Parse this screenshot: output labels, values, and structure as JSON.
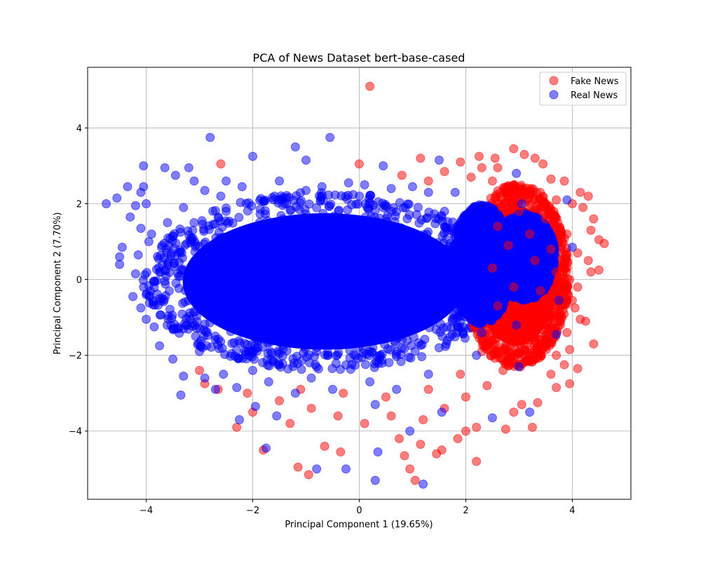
{
  "chart_data": {
    "type": "scatter",
    "title": "PCA of News Dataset bert-base-cased",
    "xlabel": "Principal Component 1 (19.65%)",
    "ylabel": "Principal Component 2 (7.70%)",
    "xlim": [
      -5.1,
      5.1
    ],
    "ylim": [
      -5.8,
      5.6
    ],
    "xticks": [
      -4,
      -2,
      0,
      2,
      4
    ],
    "yticks": [
      -4,
      -2,
      0,
      2,
      4
    ],
    "xtick_labels": [
      "−4",
      "−2",
      "0",
      "2",
      "4"
    ],
    "ytick_labels": [
      "−4",
      "−2",
      "0",
      "2",
      "4"
    ],
    "grid": true,
    "legend_position": "top-right",
    "marker_alpha": 0.5,
    "series": [
      {
        "name": "Fake News",
        "color": "#ff0000",
        "points": [
          [
            0.2,
            5.1
          ],
          [
            2.9,
            3.45
          ],
          [
            3.1,
            3.3
          ],
          [
            2.25,
            3.25
          ],
          [
            3.3,
            3.2
          ],
          [
            1.15,
            3.2
          ],
          [
            2.6,
            2.95
          ],
          [
            3.6,
            2.65
          ],
          [
            3.85,
            2.6
          ],
          [
            4.15,
            2.3
          ],
          [
            4.3,
            2.2
          ],
          [
            3.7,
            2.1
          ],
          [
            4.0,
            2.0
          ],
          [
            4.2,
            1.9
          ],
          [
            4.4,
            1.6
          ],
          [
            4.35,
            1.3
          ],
          [
            4.5,
            1.05
          ],
          [
            4.6,
            0.95
          ],
          [
            4.3,
            0.5
          ],
          [
            4.5,
            0.25
          ],
          [
            4.35,
            0.2
          ],
          [
            4.1,
            -0.2
          ],
          [
            4.0,
            -0.55
          ],
          [
            4.05,
            -0.75
          ],
          [
            4.15,
            -1.05
          ],
          [
            4.25,
            -1.1
          ],
          [
            3.9,
            -1.4
          ],
          [
            4.4,
            -1.7
          ],
          [
            3.95,
            -1.85
          ],
          [
            3.7,
            -2.0
          ],
          [
            3.85,
            -2.25
          ],
          [
            4.1,
            -2.35
          ],
          [
            3.6,
            -2.5
          ],
          [
            3.95,
            -2.75
          ],
          [
            3.7,
            -2.85
          ],
          [
            3.35,
            -3.25
          ],
          [
            3.05,
            -3.3
          ],
          [
            2.9,
            -3.5
          ],
          [
            3.25,
            -3.9
          ],
          [
            2.75,
            -3.95
          ],
          [
            2.2,
            -3.9
          ],
          [
            2.0,
            -4.0
          ],
          [
            1.85,
            -4.2
          ],
          [
            1.55,
            -4.5
          ],
          [
            1.45,
            -4.6
          ],
          [
            1.15,
            -4.35
          ],
          [
            0.75,
            -4.2
          ],
          [
            0.85,
            -4.65
          ],
          [
            0.95,
            -5.0
          ],
          [
            1.05,
            -5.3
          ],
          [
            2.2,
            -4.8
          ],
          [
            -0.35,
            -4.55
          ],
          [
            -0.65,
            -4.4
          ],
          [
            -1.15,
            -4.95
          ],
          [
            -0.95,
            -5.15
          ],
          [
            -1.3,
            -3.8
          ],
          [
            -1.8,
            -4.5
          ],
          [
            -2.3,
            -3.9
          ],
          [
            -2.0,
            -3.5
          ],
          [
            -2.65,
            -2.9
          ],
          [
            -2.6,
            3.05
          ],
          [
            -2.9,
            -2.75
          ],
          [
            -3.0,
            -2.4
          ],
          [
            0.0,
            3.05
          ],
          [
            1.9,
            3.1
          ],
          [
            2.1,
            2.7
          ],
          [
            2.5,
            2.6
          ],
          [
            2.8,
            2.3
          ],
          [
            3.4,
            2.3
          ],
          [
            3.0,
            1.8
          ],
          [
            3.5,
            1.6
          ],
          [
            3.2,
            1.2
          ],
          [
            3.6,
            0.8
          ],
          [
            3.3,
            0.5
          ],
          [
            3.7,
            0.2
          ],
          [
            3.4,
            -0.3
          ],
          [
            3.8,
            -0.6
          ],
          [
            3.2,
            -0.9
          ],
          [
            3.5,
            -1.2
          ],
          [
            3.1,
            -1.6
          ],
          [
            3.3,
            -2.1
          ],
          [
            2.7,
            -2.4
          ],
          [
            2.4,
            -2.8
          ],
          [
            2.0,
            -3.1
          ],
          [
            1.6,
            -3.4
          ],
          [
            1.2,
            -3.7
          ],
          [
            0.6,
            -3.6
          ],
          [
            0.1,
            -3.8
          ],
          [
            -0.4,
            -3.6
          ],
          [
            -0.9,
            -3.4
          ],
          [
            -1.5,
            -3.2
          ],
          [
            -2.1,
            -3.0
          ],
          [
            2.6,
            1.4
          ],
          [
            2.8,
            0.9
          ],
          [
            2.5,
            0.3
          ],
          [
            2.9,
            -0.2
          ],
          [
            2.6,
            -0.7
          ],
          [
            2.8,
            -1.3
          ],
          [
            2.3,
            -1.9
          ],
          [
            1.9,
            -2.5
          ],
          [
            1.3,
            -2.9
          ],
          [
            0.5,
            -3.1
          ],
          [
            -0.3,
            -3.0
          ],
          [
            -1.1,
            -2.9
          ],
          [
            3.9,
            1.2
          ],
          [
            4.1,
            0.7
          ],
          [
            3.95,
            0.0
          ],
          [
            3.75,
            -0.95
          ],
          [
            2.3,
            2.95
          ],
          [
            1.6,
            2.85
          ],
          [
            1.3,
            2.6
          ],
          [
            0.8,
            2.75
          ],
          [
            3.45,
            3.05
          ],
          [
            2.55,
            3.2
          ]
        ]
      },
      {
        "name": "Real News",
        "color": "#0000ff",
        "points": [
          [
            -2.8,
            3.75
          ],
          [
            -0.55,
            3.75
          ],
          [
            -1.2,
            3.5
          ],
          [
            -2.0,
            3.25
          ],
          [
            -1.0,
            3.15
          ],
          [
            -4.05,
            3.0
          ],
          [
            -3.65,
            2.95
          ],
          [
            -3.2,
            2.95
          ],
          [
            -2.5,
            2.6
          ],
          [
            -4.35,
            2.45
          ],
          [
            -4.05,
            2.45
          ],
          [
            -4.1,
            2.3
          ],
          [
            -4.55,
            2.15
          ],
          [
            -4.75,
            2.0
          ],
          [
            -4.0,
            2.0
          ],
          [
            -4.3,
            1.65
          ],
          [
            -4.1,
            1.35
          ],
          [
            -3.95,
            1.0
          ],
          [
            -4.45,
            0.85
          ],
          [
            -4.5,
            0.6
          ],
          [
            -4.15,
            0.65
          ],
          [
            -4.5,
            0.4
          ],
          [
            -4.2,
            0.15
          ],
          [
            -4.05,
            -0.2
          ],
          [
            -4.0,
            -0.4
          ],
          [
            -4.25,
            -0.45
          ],
          [
            -4.1,
            -0.75
          ],
          [
            -4.0,
            -1.05
          ],
          [
            -3.85,
            -1.25
          ],
          [
            -3.75,
            -1.75
          ],
          [
            -3.5,
            -2.1
          ],
          [
            -3.3,
            -2.55
          ],
          [
            -3.35,
            -3.05
          ],
          [
            -2.9,
            -2.6
          ],
          [
            -2.7,
            -2.9
          ],
          [
            -2.55,
            -2.5
          ],
          [
            -2.3,
            -2.85
          ],
          [
            -2.25,
            -3.7
          ],
          [
            -1.95,
            -3.35
          ],
          [
            -1.55,
            -3.6
          ],
          [
            -1.75,
            -4.45
          ],
          [
            -0.8,
            -5.0
          ],
          [
            -0.25,
            -5.0
          ],
          [
            0.35,
            -4.55
          ],
          [
            0.3,
            -5.3
          ],
          [
            1.2,
            -5.4
          ],
          [
            0.95,
            -4.0
          ],
          [
            1.55,
            -3.5
          ],
          [
            2.5,
            -3.65
          ],
          [
            3.2,
            -3.5
          ],
          [
            1.5,
            3.15
          ],
          [
            0.45,
            3.0
          ],
          [
            2.95,
            2.8
          ],
          [
            3.9,
            2.1
          ],
          [
            4.0,
            0.85
          ],
          [
            3.75,
            -0.55
          ],
          [
            3.7,
            -1.45
          ],
          [
            3.0,
            -2.3
          ],
          [
            -2.9,
            2.35
          ],
          [
            -1.5,
            2.6
          ],
          [
            -0.2,
            2.55
          ],
          [
            0.6,
            2.4
          ],
          [
            1.3,
            2.3
          ],
          [
            -3.6,
            1.5
          ],
          [
            -2.5,
            1.8
          ],
          [
            -1.4,
            2.0
          ],
          [
            0.2,
            2.0
          ],
          [
            1.6,
            1.8
          ],
          [
            -3.7,
            0.9
          ],
          [
            -2.6,
            1.1
          ],
          [
            -1.5,
            1.2
          ],
          [
            -0.3,
            1.3
          ],
          [
            0.9,
            1.1
          ],
          [
            2.0,
            1.0
          ],
          [
            -3.75,
            0.2
          ],
          [
            -2.7,
            0.4
          ],
          [
            -1.6,
            0.5
          ],
          [
            -0.4,
            0.4
          ],
          [
            0.8,
            0.5
          ],
          [
            2.1,
            0.3
          ],
          [
            -3.7,
            -0.5
          ],
          [
            -2.6,
            -0.3
          ],
          [
            -1.5,
            -0.4
          ],
          [
            -0.3,
            -0.5
          ],
          [
            0.9,
            -0.3
          ],
          [
            2.2,
            -0.6
          ],
          [
            -3.5,
            -1.3
          ],
          [
            -2.4,
            -1.1
          ],
          [
            -1.3,
            -1.2
          ],
          [
            -0.1,
            -1.3
          ],
          [
            1.1,
            -1.1
          ],
          [
            2.3,
            -1.4
          ],
          [
            -3.0,
            -1.9
          ],
          [
            -1.9,
            -1.8
          ],
          [
            -0.8,
            -1.9
          ],
          [
            0.4,
            -2.0
          ],
          [
            1.5,
            -1.8
          ],
          [
            -2.0,
            -2.4
          ],
          [
            -0.9,
            -2.6
          ],
          [
            0.2,
            -2.7
          ],
          [
            1.3,
            -2.5
          ],
          [
            -2.6,
            2.2
          ],
          [
            -1.0,
            2.35
          ],
          [
            0.1,
            2.5
          ],
          [
            1.0,
            2.45
          ],
          [
            -3.3,
            1.9
          ],
          [
            -3.85,
            -0.05
          ],
          [
            -3.9,
            1.2
          ],
          [
            2.6,
            0.6
          ],
          [
            2.5,
            -0.9
          ],
          [
            2.4,
            1.5
          ],
          [
            2.2,
            -2.0
          ],
          [
            0.7,
            -2.9
          ],
          [
            -0.5,
            -2.9
          ],
          [
            -1.7,
            -2.7
          ],
          [
            -3.1,
            2.6
          ],
          [
            -2.2,
            2.45
          ],
          [
            -0.7,
            2.45
          ],
          [
            1.8,
            2.3
          ],
          [
            0.3,
            -3.3
          ],
          [
            -1.2,
            -3.0
          ],
          [
            3.05,
            2.0
          ],
          [
            3.2,
            0.3
          ],
          [
            2.95,
            -1.2
          ],
          [
            -4.2,
            1.95
          ],
          [
            -3.45,
            2.75
          ]
        ]
      }
    ],
    "dense_clouds": [
      {
        "series": "Real News",
        "center": [
          -0.65,
          -0.05
        ],
        "radius": [
          3.25,
          2.25
        ]
      },
      {
        "series": "Fake News",
        "center": [
          2.95,
          0.1
        ],
        "radius": [
          0.95,
          2.3
        ]
      },
      {
        "series": "Real News",
        "center": [
          2.3,
          0.4
        ],
        "radius": [
          0.55,
          1.5
        ]
      },
      {
        "series": "Real News",
        "center": [
          3.1,
          0.6
        ],
        "radius": [
          0.55,
          1.1
        ]
      }
    ]
  }
}
